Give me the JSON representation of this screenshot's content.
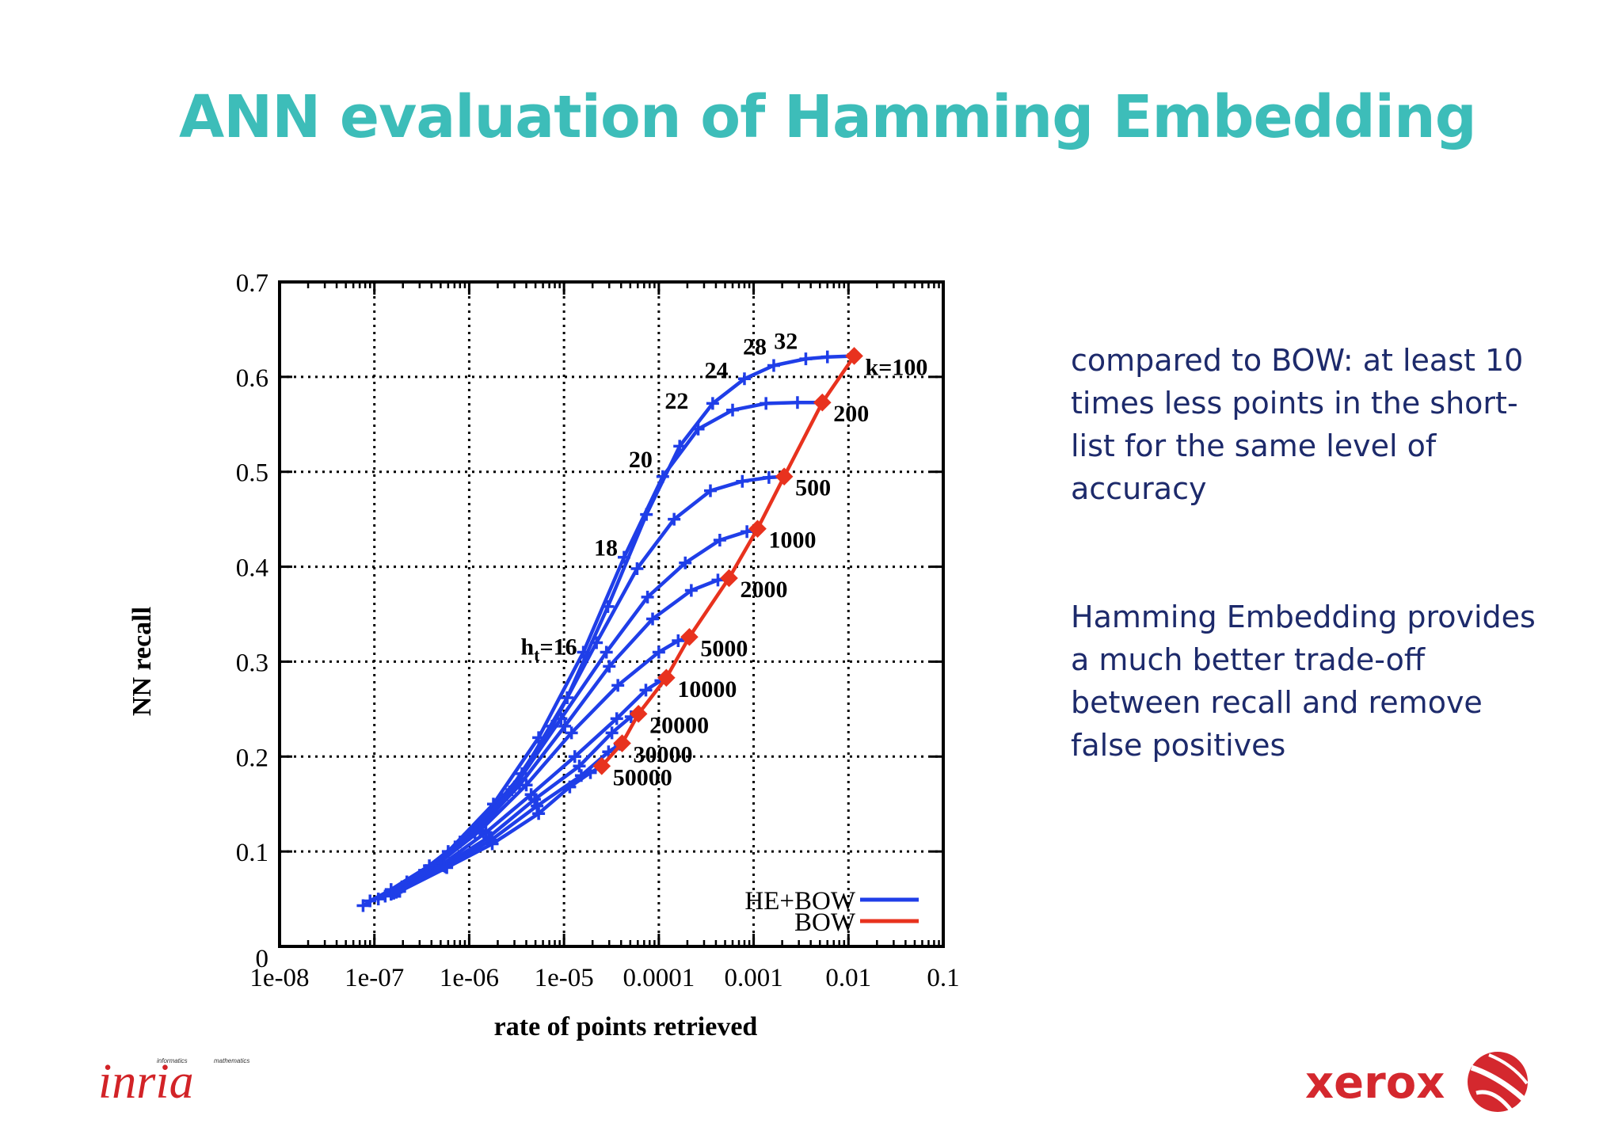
{
  "slide": {
    "title": "ANN evaluation of Hamming Embedding",
    "notes": [
      "compared to BOW: at least 10 times less points in the short-list for the same level of accuracy",
      "Hamming Embedding provides a much better trade-off between recall and remove false positives"
    ],
    "logos": {
      "left_text": "inria",
      "left_small_left": "informatics",
      "left_small_right": "mathematics",
      "right_text": "xerox"
    },
    "colors": {
      "title": "#3dbdb9",
      "text": "#1d2a6b",
      "xerox_red": "#d4282e",
      "he_bow": "#1f3ee8",
      "bow": "#e8321e"
    }
  },
  "chart_data": {
    "type": "line",
    "xscale": "log",
    "xlabel": "rate of points retrieved",
    "ylabel": "NN recall",
    "xlim": [
      1e-08,
      0.1
    ],
    "ylim": [
      0,
      0.7
    ],
    "xticks": [
      "1e-08",
      "1e-07",
      "1e-06",
      "1e-05",
      "0.0001",
      "0.001",
      "0.01",
      "0.1"
    ],
    "yticks": [
      "0",
      "0.1",
      "0.2",
      "0.3",
      "0.4",
      "0.5",
      "0.6",
      "0.7"
    ],
    "grid": true,
    "legend": {
      "position": "bottom-right",
      "entries": [
        "HE+BOW",
        "BOW"
      ]
    },
    "series": [
      {
        "name": "HE+BOW",
        "label": "k=100",
        "points": [
          [
            7.6e-08,
            0.043
          ],
          [
            1.5e-07,
            0.06
          ],
          [
            3.8e-07,
            0.085
          ],
          [
            1.2e-06,
            0.125
          ],
          [
            3.6e-06,
            0.182
          ],
          [
            1.08e-05,
            0.262
          ],
          [
            2.9e-05,
            0.358
          ],
          [
            7.4e-05,
            0.455
          ],
          [
            0.000166,
            0.527
          ],
          [
            0.00037,
            0.572
          ],
          [
            0.0008,
            0.598
          ],
          [
            0.00163,
            0.612
          ],
          [
            0.00355,
            0.619
          ],
          [
            0.006,
            0.621
          ],
          [
            0.0115,
            0.622
          ]
        ]
      },
      {
        "name": "HE+BOW",
        "label": "200",
        "points": [
          [
            9e-08,
            0.048
          ],
          [
            2.2e-07,
            0.068
          ],
          [
            6e-07,
            0.1
          ],
          [
            1.8e-06,
            0.15
          ],
          [
            5.4e-06,
            0.22
          ],
          [
            1.6e-05,
            0.31
          ],
          [
            4.3e-05,
            0.41
          ],
          [
            0.00011,
            0.495
          ],
          [
            0.00026,
            0.545
          ],
          [
            0.0006,
            0.565
          ],
          [
            0.00135,
            0.572
          ],
          [
            0.0029,
            0.573
          ],
          [
            0.0053,
            0.573
          ]
        ]
      },
      {
        "name": "HE+BOW",
        "label": "500",
        "points": [
          [
            1.1e-07,
            0.05
          ],
          [
            3e-07,
            0.075
          ],
          [
            8e-07,
            0.11
          ],
          [
            2.5e-06,
            0.16
          ],
          [
            7.5e-06,
            0.232
          ],
          [
            2.2e-05,
            0.32
          ],
          [
            5.9e-05,
            0.398
          ],
          [
            0.000145,
            0.45
          ],
          [
            0.00035,
            0.48
          ],
          [
            0.00076,
            0.49
          ],
          [
            0.00145,
            0.494
          ],
          [
            0.0021,
            0.495
          ]
        ]
      },
      {
        "name": "HE+BOW",
        "label": "1000",
        "points": [
          [
            1.3e-07,
            0.053
          ],
          [
            3.5e-07,
            0.08
          ],
          [
            1e-06,
            0.118
          ],
          [
            3e-06,
            0.168
          ],
          [
            9.3e-06,
            0.24
          ],
          [
            2.8e-05,
            0.31
          ],
          [
            7.6e-05,
            0.368
          ],
          [
            0.00019,
            0.404
          ],
          [
            0.00044,
            0.428
          ],
          [
            0.00085,
            0.437
          ],
          [
            0.0011,
            0.44
          ]
        ]
      },
      {
        "name": "HE+BOW",
        "label": "2000",
        "points": [
          [
            1.5e-07,
            0.055
          ],
          [
            4e-07,
            0.082
          ],
          [
            1.15e-06,
            0.12
          ],
          [
            3.4e-06,
            0.17
          ],
          [
            1.02e-05,
            0.232
          ],
          [
            3e-05,
            0.295
          ],
          [
            8.6e-05,
            0.345
          ],
          [
            0.00022,
            0.375
          ],
          [
            0.00042,
            0.386
          ],
          [
            0.00055,
            0.388
          ]
        ]
      },
      {
        "name": "HE+BOW",
        "label": "5000",
        "points": [
          [
            1.6e-07,
            0.056
          ],
          [
            4.4e-07,
            0.085
          ],
          [
            1.3e-06,
            0.122
          ],
          [
            4e-06,
            0.17
          ],
          [
            1.2e-05,
            0.225
          ],
          [
            3.7e-05,
            0.275
          ],
          [
            0.0001,
            0.31
          ],
          [
            0.00016,
            0.322
          ],
          [
            0.00021,
            0.326
          ]
        ]
      },
      {
        "name": "HE+BOW",
        "label": "10000",
        "points": [
          [
            1.7e-07,
            0.057
          ],
          [
            5e-07,
            0.085
          ],
          [
            1.5e-06,
            0.12
          ],
          [
            4.5e-06,
            0.16
          ],
          [
            1.3e-05,
            0.2
          ],
          [
            3.6e-05,
            0.24
          ],
          [
            7.3e-05,
            0.27
          ],
          [
            0.000105,
            0.28
          ],
          [
            0.00012,
            0.283
          ]
        ]
      },
      {
        "name": "HE+BOW",
        "label": "20000",
        "points": [
          [
            1.75e-07,
            0.058
          ],
          [
            5.4e-07,
            0.085
          ],
          [
            1.6e-06,
            0.115
          ],
          [
            4.9e-06,
            0.155
          ],
          [
            1.45e-05,
            0.19
          ],
          [
            3.2e-05,
            0.225
          ],
          [
            5.1e-05,
            0.242
          ],
          [
            6.1e-05,
            0.245
          ]
        ]
      },
      {
        "name": "HE+BOW",
        "label": "30000",
        "points": [
          [
            1.8e-07,
            0.058
          ],
          [
            5.6e-07,
            0.084
          ],
          [
            1.7e-06,
            0.112
          ],
          [
            5.2e-06,
            0.148
          ],
          [
            1.52e-05,
            0.18
          ],
          [
            2.95e-05,
            0.205
          ],
          [
            3.9e-05,
            0.213
          ],
          [
            4.1e-05,
            0.214
          ]
        ]
      },
      {
        "name": "HE+BOW",
        "label": "50000",
        "points": [
          [
            1.85e-07,
            0.058
          ],
          [
            5.8e-07,
            0.083
          ],
          [
            1.75e-06,
            0.108
          ],
          [
            5.4e-06,
            0.14
          ],
          [
            1.15e-05,
            0.168
          ],
          [
            1.9e-05,
            0.183
          ],
          [
            2.5e-05,
            0.19
          ]
        ]
      },
      {
        "name": "BOW",
        "points": [
          [
            2.5e-05,
            0.19
          ],
          [
            4.1e-05,
            0.214
          ],
          [
            6.1e-05,
            0.245
          ],
          [
            0.00012,
            0.283
          ],
          [
            0.00021,
            0.326
          ],
          [
            0.00055,
            0.388
          ],
          [
            0.0011,
            0.44
          ],
          [
            0.0021,
            0.495
          ],
          [
            0.0053,
            0.573
          ],
          [
            0.0115,
            0.622
          ]
        ],
        "point_labels": [
          "50000",
          "30000",
          "20000",
          "10000",
          "5000",
          "2000",
          "1000",
          "500",
          "200",
          "k=100"
        ]
      }
    ],
    "annotations": [
      {
        "text": "h",
        "subscript": "t",
        "suffix": "=16",
        "x": 1.6e-05,
        "y": 0.316
      },
      {
        "text": "18",
        "x": 4.3e-05,
        "y": 0.42
      },
      {
        "text": "20",
        "x": 0.0001,
        "y": 0.513
      },
      {
        "text": "22",
        "x": 0.00024,
        "y": 0.575
      },
      {
        "text": "24",
        "x": 0.00063,
        "y": 0.607
      },
      {
        "text": "28",
        "x": 0.0016,
        "y": 0.632
      },
      {
        "text": "32",
        "x": 0.0034,
        "y": 0.638
      }
    ]
  }
}
